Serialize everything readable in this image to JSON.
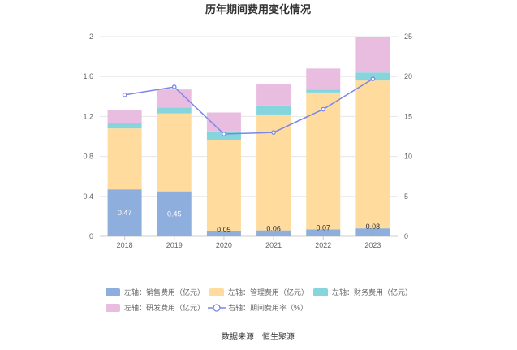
{
  "chart_data": {
    "type": "bar",
    "title": "历年期间费用变化情况",
    "categories": [
      "2018",
      "2019",
      "2020",
      "2021",
      "2022",
      "2023"
    ],
    "stacked": true,
    "y_left": {
      "ylim": [
        0,
        2
      ],
      "ticks": [
        "0",
        "0.4",
        "0.8",
        "1.2",
        "1.6",
        "2"
      ]
    },
    "y_right": {
      "ylim": [
        0,
        25
      ],
      "ticks": [
        "0",
        "5",
        "10",
        "15",
        "20",
        "25"
      ]
    },
    "series": [
      {
        "name": "左轴：销售费用（亿元）",
        "type": "bar",
        "axis": "left",
        "color": "#8eaedd",
        "values": [
          0.47,
          0.45,
          0.05,
          0.06,
          0.07,
          0.08
        ],
        "labels": [
          "0.47",
          "0.45",
          "0.05",
          "0.06",
          "0.07",
          "0.08"
        ]
      },
      {
        "name": "左轴：管理费用（亿元）",
        "type": "bar",
        "axis": "left",
        "color": "#ffdb9e",
        "values": [
          0.61,
          0.78,
          0.91,
          1.16,
          1.37,
          1.48
        ]
      },
      {
        "name": "左轴：财务费用（亿元）",
        "type": "bar",
        "axis": "left",
        "color": "#85d6dc",
        "values": [
          0.05,
          0.06,
          0.09,
          0.09,
          0.03,
          0.08
        ]
      },
      {
        "name": "左轴：研发费用（亿元）",
        "type": "bar",
        "axis": "left",
        "color": "#e8bde0",
        "values": [
          0.13,
          0.18,
          0.19,
          0.21,
          0.21,
          0.36
        ]
      },
      {
        "name": "右轴：期间费用率（%）",
        "type": "line",
        "axis": "right",
        "color": "#7b86e8",
        "values": [
          17.7,
          18.7,
          12.8,
          13.0,
          15.9,
          19.7
        ]
      }
    ],
    "legend_position": "bottom",
    "grid": true
  },
  "footer": {
    "source": "数据来源：恒生聚源"
  }
}
